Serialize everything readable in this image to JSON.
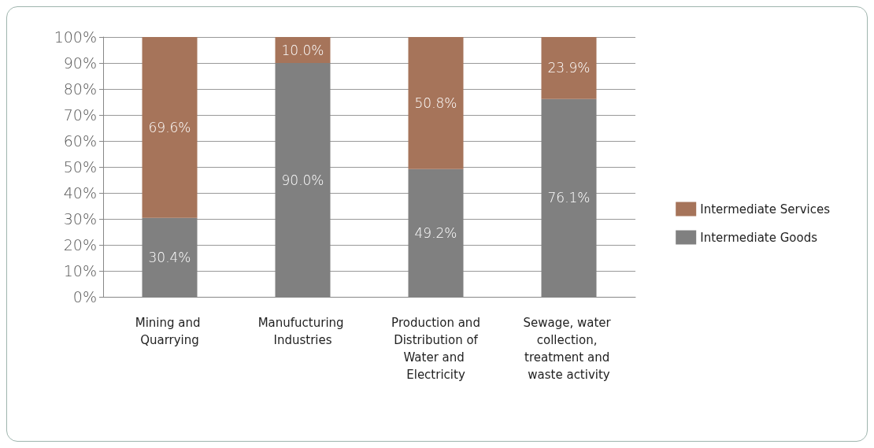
{
  "chart_data": {
    "type": "bar",
    "stacked": true,
    "categories": [
      "Mining and Quarrying",
      "Manufucturing Industries",
      "Production and Distribution of Water and Electricity",
      "Sewage, water collection, treatment and waste activity"
    ],
    "series": [
      {
        "name": "Intermediate Goods",
        "color": "#808080",
        "values": [
          30.4,
          90.0,
          49.2,
          76.1
        ],
        "value_labels": [
          "30.4%",
          "90.0%",
          "49.2%",
          "76.1%"
        ]
      },
      {
        "name": "Intermediate Services",
        "color": "#a6745a",
        "values": [
          69.6,
          10.0,
          50.8,
          23.9
        ],
        "value_labels": [
          "69.6%",
          "10.0%",
          "50.8%",
          "23.9%"
        ]
      }
    ],
    "ylim": [
      0,
      100
    ],
    "yticks": [
      {
        "value": 0,
        "label": "0%"
      },
      {
        "value": 10,
        "label": "10%"
      },
      {
        "value": 20,
        "label": "20%"
      },
      {
        "value": 30,
        "label": "30%"
      },
      {
        "value": 40,
        "label": "40%"
      },
      {
        "value": 50,
        "label": "50%"
      },
      {
        "value": 60,
        "label": "60%"
      },
      {
        "value": 70,
        "label": "70%"
      },
      {
        "value": 80,
        "label": "80%"
      },
      {
        "value": 90,
        "label": "90%"
      },
      {
        "value": 100,
        "label": "100%"
      }
    ],
    "grid": "y",
    "legend": "right"
  }
}
